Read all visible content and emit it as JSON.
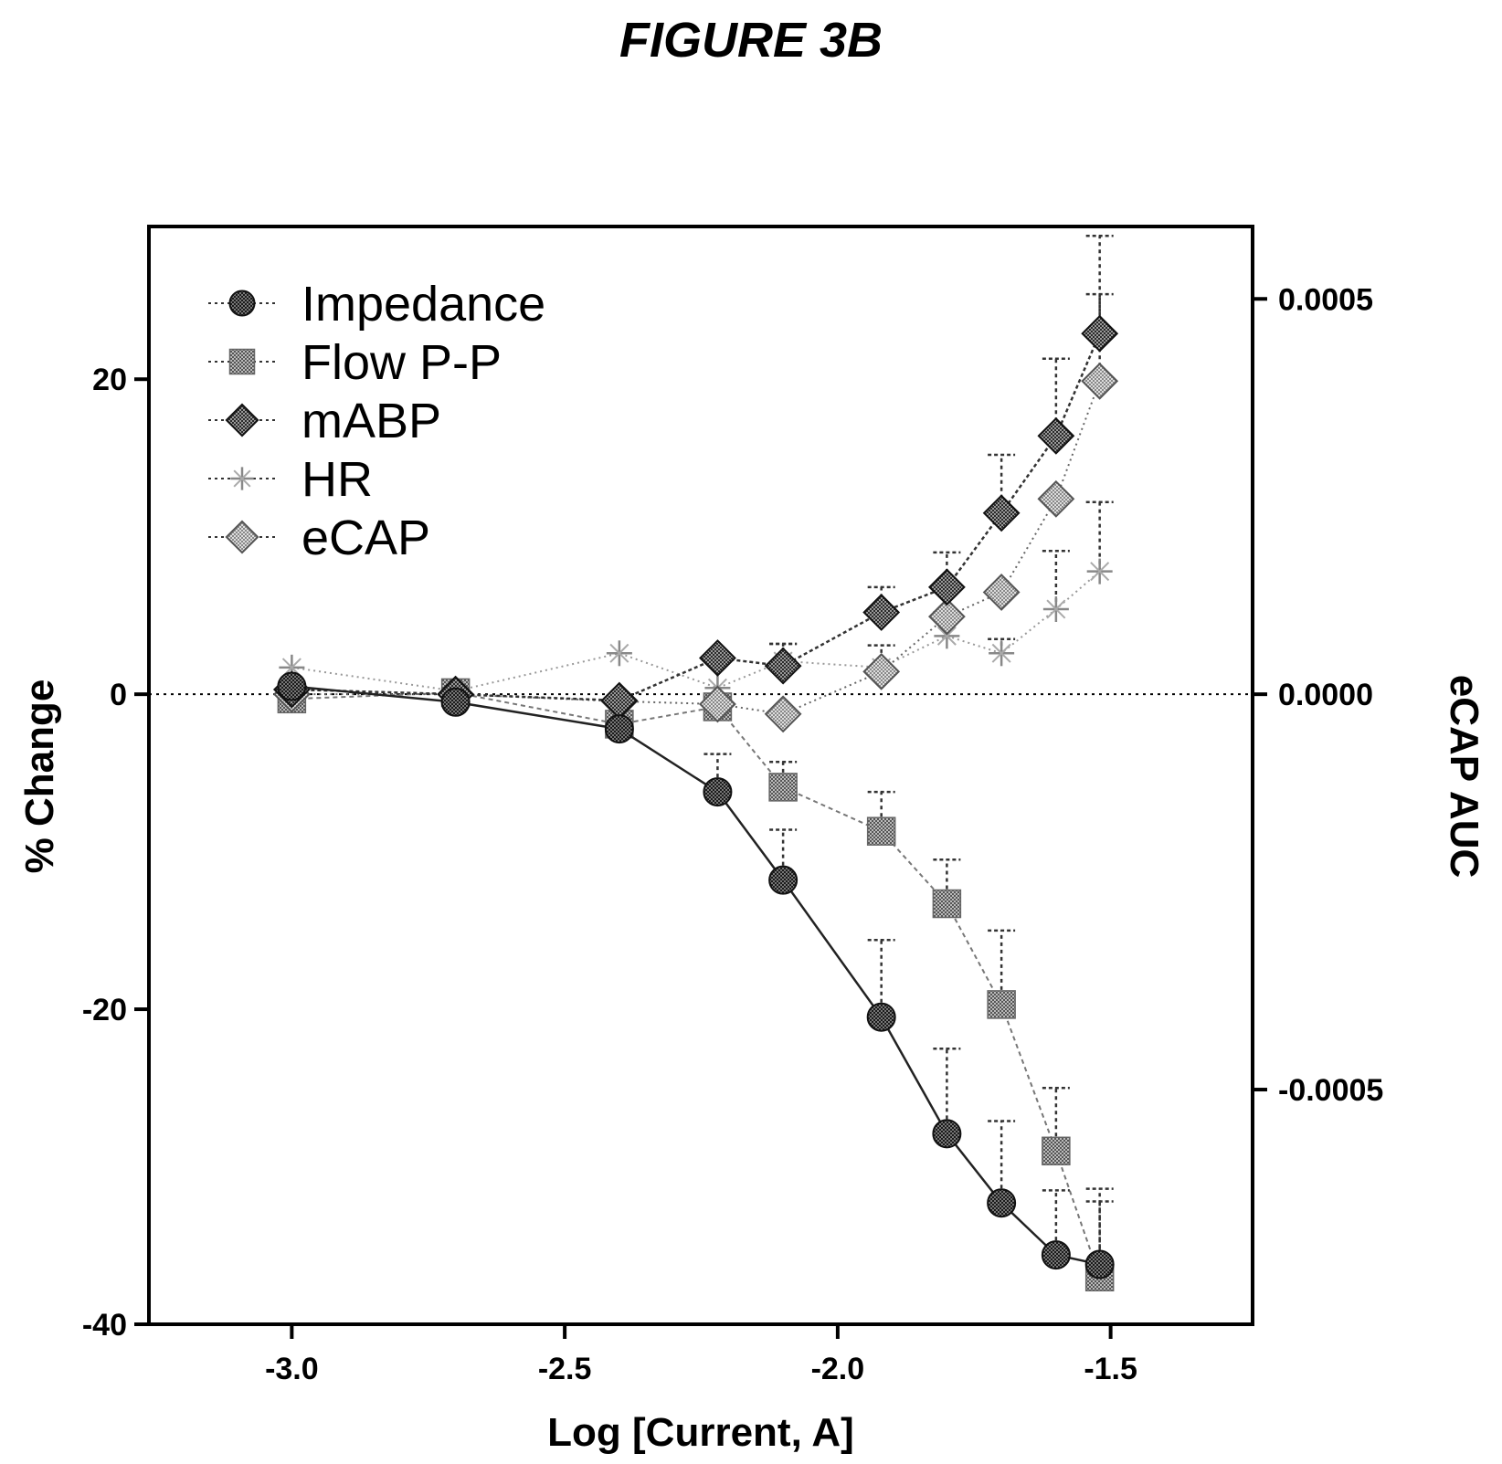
{
  "figure_title": "FIGURE 3B",
  "chart_data": {
    "type": "line",
    "title": "FIGURE 3B",
    "xlabel": "Log [Current, A]",
    "ylabel": "% Change",
    "y2label": "eCAP AUC",
    "xlim": [
      -3.25,
      -1.25
    ],
    "ylim": [
      -40,
      29
    ],
    "y2lim": [
      -0.00076,
      0.0005
    ],
    "x_ticks": [
      -3.0,
      -2.5,
      -2.0,
      -1.5
    ],
    "x_tick_labels": [
      "-3.0",
      "-2.5",
      "-2.0",
      "-1.5"
    ],
    "y_ticks": [
      -40,
      -20,
      0,
      20
    ],
    "y_tick_labels": [
      "-40",
      "-20",
      "0",
      "20"
    ],
    "y2_ticks": [
      -0.0005,
      0.0,
      0.0005
    ],
    "y2_tick_labels": [
      "-0.0005",
      "0.0000",
      "0.0005"
    ],
    "zero_line": true,
    "grid": false,
    "legend_position": "top-left",
    "x": [
      -3.0,
      -2.7,
      -2.4,
      -2.22,
      -2.1,
      -1.92,
      -1.8,
      -1.7,
      -1.6,
      -1.52
    ],
    "series": [
      {
        "name": "Impedance",
        "marker": "circle",
        "axis": "left",
        "line": "solid",
        "values": [
          0.5,
          -0.5,
          -2.2,
          -6.2,
          -11.8,
          -20.5,
          -27.9,
          -32.3,
          -35.6,
          -36.2
        ],
        "error_upper": [
          null,
          null,
          null,
          2.4,
          3.2,
          4.9,
          5.4,
          5.2,
          4.1,
          4.0
        ]
      },
      {
        "name": "Flow P-P",
        "marker": "square",
        "axis": "left",
        "line": "dashed",
        "values": [
          -0.3,
          0.1,
          -1.9,
          -0.8,
          -5.9,
          -8.7,
          -13.3,
          -19.7,
          -29.0,
          -37.0
        ],
        "error_upper": [
          null,
          null,
          null,
          null,
          1.6,
          2.5,
          2.8,
          4.7,
          4.0,
          5.6
        ]
      },
      {
        "name": "mABP",
        "marker": "diamond",
        "axis": "left",
        "line": "dashed",
        "values": [
          0.3,
          0.0,
          -0.4,
          2.3,
          1.8,
          5.2,
          6.8,
          11.5,
          16.4,
          22.9
        ],
        "error_upper": [
          null,
          null,
          null,
          null,
          1.4,
          1.6,
          2.2,
          3.7,
          4.9,
          6.2
        ]
      },
      {
        "name": "HR",
        "marker": "asterisk",
        "axis": "left",
        "line": "dotted",
        "values": [
          1.7,
          0.2,
          2.6,
          0.4,
          2.1,
          1.7,
          3.7,
          2.6,
          5.4,
          7.8
        ],
        "error_upper": [
          null,
          null,
          null,
          null,
          1.1,
          1.4,
          1.5,
          0.9,
          3.7,
          4.4
        ]
      },
      {
        "name": "eCAP",
        "marker": "open-diamond",
        "axis": "right",
        "line": "dotted",
        "values": [
          0.0,
          0.0,
          -8.9e-06,
          -1.25e-05,
          -2.5e-05,
          2.86e-05,
          9.82e-05,
          0.000129,
          0.000247,
          0.000396
        ],
        "error_upper": [
          null,
          null,
          null,
          null,
          null,
          null,
          null,
          null,
          null,
          0.00011
        ]
      }
    ]
  }
}
